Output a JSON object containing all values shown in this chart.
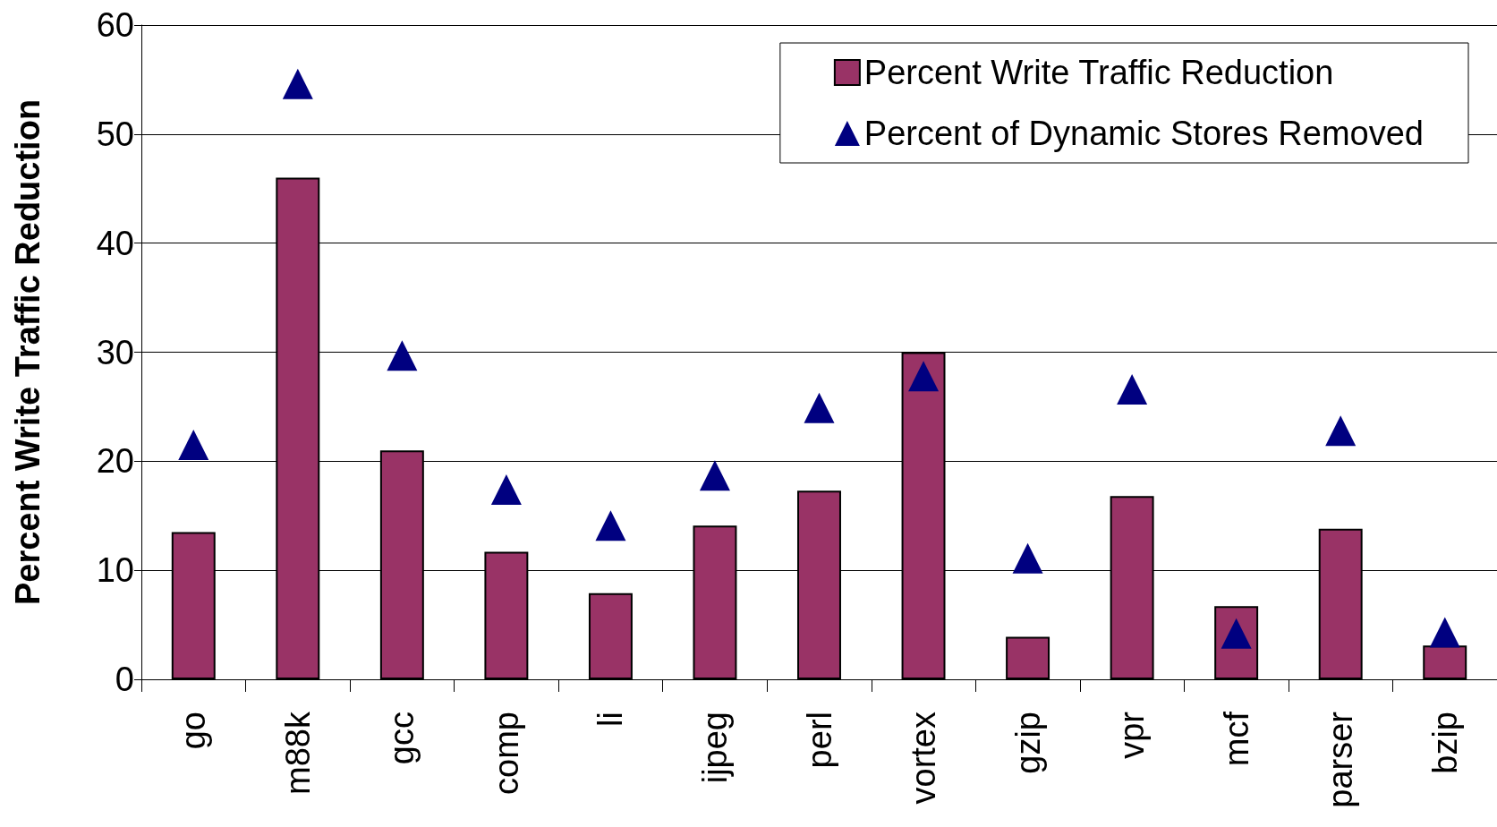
{
  "chart_data": {
    "type": "bar",
    "ylabel": "Percent Write Traffic Reduction",
    "categories": [
      "go",
      "m88k",
      "gcc",
      "comp",
      "li",
      "ijpeg",
      "perl",
      "vortex",
      "gzip",
      "vpr",
      "mcf",
      "parser",
      "bzip"
    ],
    "series": [
      {
        "name": "Percent Write Traffic Reduction",
        "color": "#993366",
        "values": [
          13.5,
          46,
          21,
          11.7,
          7.9,
          14.1,
          17.3,
          30,
          3.9,
          16.8,
          6.7,
          13.8,
          3.1
        ]
      },
      {
        "name": "Percent of Dynamic Stores Removed",
        "type": "scatter",
        "color": "#000080",
        "marker": "triangle",
        "x": [
          "go",
          "m88k",
          "gcc",
          "comp",
          "li",
          "ijpeg",
          "perl",
          "vortex",
          "gzip",
          "vpr",
          "mcf",
          "parser",
          "bzip"
        ],
        "values": [
          21.5,
          54.6,
          29.7,
          17.4,
          14.1,
          18.7,
          24.9,
          27.8,
          11.1,
          26.6,
          4.2,
          22.8,
          4.3
        ]
      }
    ],
    "ylim": [
      0,
      60
    ],
    "yticks": [
      0,
      10,
      20,
      30,
      40,
      50,
      60
    ],
    "grid": "y",
    "legend": "top right"
  }
}
